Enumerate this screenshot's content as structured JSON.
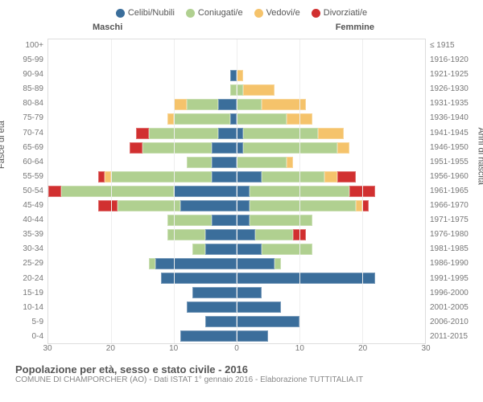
{
  "legend": [
    {
      "label": "Celibi/Nubili",
      "color": "#3b6e9b"
    },
    {
      "label": "Coniugati/e",
      "color": "#b0d090"
    },
    {
      "label": "Vedovi/e",
      "color": "#f5c36b"
    },
    {
      "label": "Divorziati/e",
      "color": "#d13030"
    }
  ],
  "gender": {
    "left": "Maschi",
    "right": "Femmine"
  },
  "axis_left_label": "Fasce di età",
  "axis_right_label": "Anni di nascita",
  "x_ticks": [
    30,
    20,
    10,
    0,
    10,
    20,
    30
  ],
  "x_max": 30,
  "colors": {
    "celibi": "#3b6e9b",
    "coniugati": "#b0d090",
    "vedovi": "#f5c36b",
    "divorziati": "#d13030",
    "grid": "#eeeeee",
    "border": "#dddddd",
    "center": "#aaaaaa"
  },
  "rows": [
    {
      "age": "100+",
      "birth": "≤ 1915",
      "m": [
        0,
        0,
        0,
        0
      ],
      "f": [
        0,
        0,
        0,
        0
      ]
    },
    {
      "age": "95-99",
      "birth": "1916-1920",
      "m": [
        0,
        0,
        0,
        0
      ],
      "f": [
        0,
        0,
        0,
        0
      ]
    },
    {
      "age": "90-94",
      "birth": "1921-1925",
      "m": [
        1,
        0,
        0,
        0
      ],
      "f": [
        0,
        0,
        1,
        0
      ]
    },
    {
      "age": "85-89",
      "birth": "1926-1930",
      "m": [
        0,
        1,
        0,
        0
      ],
      "f": [
        0,
        1,
        5,
        0
      ]
    },
    {
      "age": "80-84",
      "birth": "1931-1935",
      "m": [
        3,
        5,
        2,
        0
      ],
      "f": [
        0,
        4,
        7,
        0
      ]
    },
    {
      "age": "75-79",
      "birth": "1936-1940",
      "m": [
        1,
        9,
        1,
        0
      ],
      "f": [
        0,
        8,
        4,
        0
      ]
    },
    {
      "age": "70-74",
      "birth": "1941-1945",
      "m": [
        3,
        11,
        0,
        2
      ],
      "f": [
        1,
        12,
        4,
        0
      ]
    },
    {
      "age": "65-69",
      "birth": "1946-1950",
      "m": [
        4,
        11,
        0,
        2
      ],
      "f": [
        1,
        15,
        2,
        0
      ]
    },
    {
      "age": "60-64",
      "birth": "1951-1955",
      "m": [
        4,
        4,
        0,
        0
      ],
      "f": [
        0,
        8,
        1,
        0
      ]
    },
    {
      "age": "55-59",
      "birth": "1956-1960",
      "m": [
        4,
        16,
        1,
        1
      ],
      "f": [
        4,
        10,
        2,
        3
      ]
    },
    {
      "age": "50-54",
      "birth": "1961-1965",
      "m": [
        10,
        18,
        0,
        2
      ],
      "f": [
        2,
        16,
        0,
        4
      ]
    },
    {
      "age": "45-49",
      "birth": "1966-1970",
      "m": [
        9,
        10,
        0,
        3
      ],
      "f": [
        2,
        17,
        1,
        1
      ]
    },
    {
      "age": "40-44",
      "birth": "1971-1975",
      "m": [
        4,
        7,
        0,
        0
      ],
      "f": [
        2,
        10,
        0,
        0
      ]
    },
    {
      "age": "35-39",
      "birth": "1976-1980",
      "m": [
        5,
        6,
        0,
        0
      ],
      "f": [
        3,
        6,
        0,
        2
      ]
    },
    {
      "age": "30-34",
      "birth": "1981-1985",
      "m": [
        5,
        2,
        0,
        0
      ],
      "f": [
        4,
        8,
        0,
        0
      ]
    },
    {
      "age": "25-29",
      "birth": "1986-1990",
      "m": [
        13,
        1,
        0,
        0
      ],
      "f": [
        6,
        1,
        0,
        0
      ]
    },
    {
      "age": "20-24",
      "birth": "1991-1995",
      "m": [
        12,
        0,
        0,
        0
      ],
      "f": [
        22,
        0,
        0,
        0
      ]
    },
    {
      "age": "15-19",
      "birth": "1996-2000",
      "m": [
        7,
        0,
        0,
        0
      ],
      "f": [
        4,
        0,
        0,
        0
      ]
    },
    {
      "age": "10-14",
      "birth": "2001-2005",
      "m": [
        8,
        0,
        0,
        0
      ],
      "f": [
        7,
        0,
        0,
        0
      ]
    },
    {
      "age": "5-9",
      "birth": "2006-2010",
      "m": [
        5,
        0,
        0,
        0
      ],
      "f": [
        10,
        0,
        0,
        0
      ]
    },
    {
      "age": "0-4",
      "birth": "2011-2015",
      "m": [
        9,
        0,
        0,
        0
      ],
      "f": [
        5,
        0,
        0,
        0
      ]
    }
  ],
  "footer": {
    "title": "Popolazione per età, sesso e stato civile - 2016",
    "sub": "COMUNE DI CHAMPORCHER (AO) - Dati ISTAT 1° gennaio 2016 - Elaborazione TUTTITALIA.IT"
  }
}
